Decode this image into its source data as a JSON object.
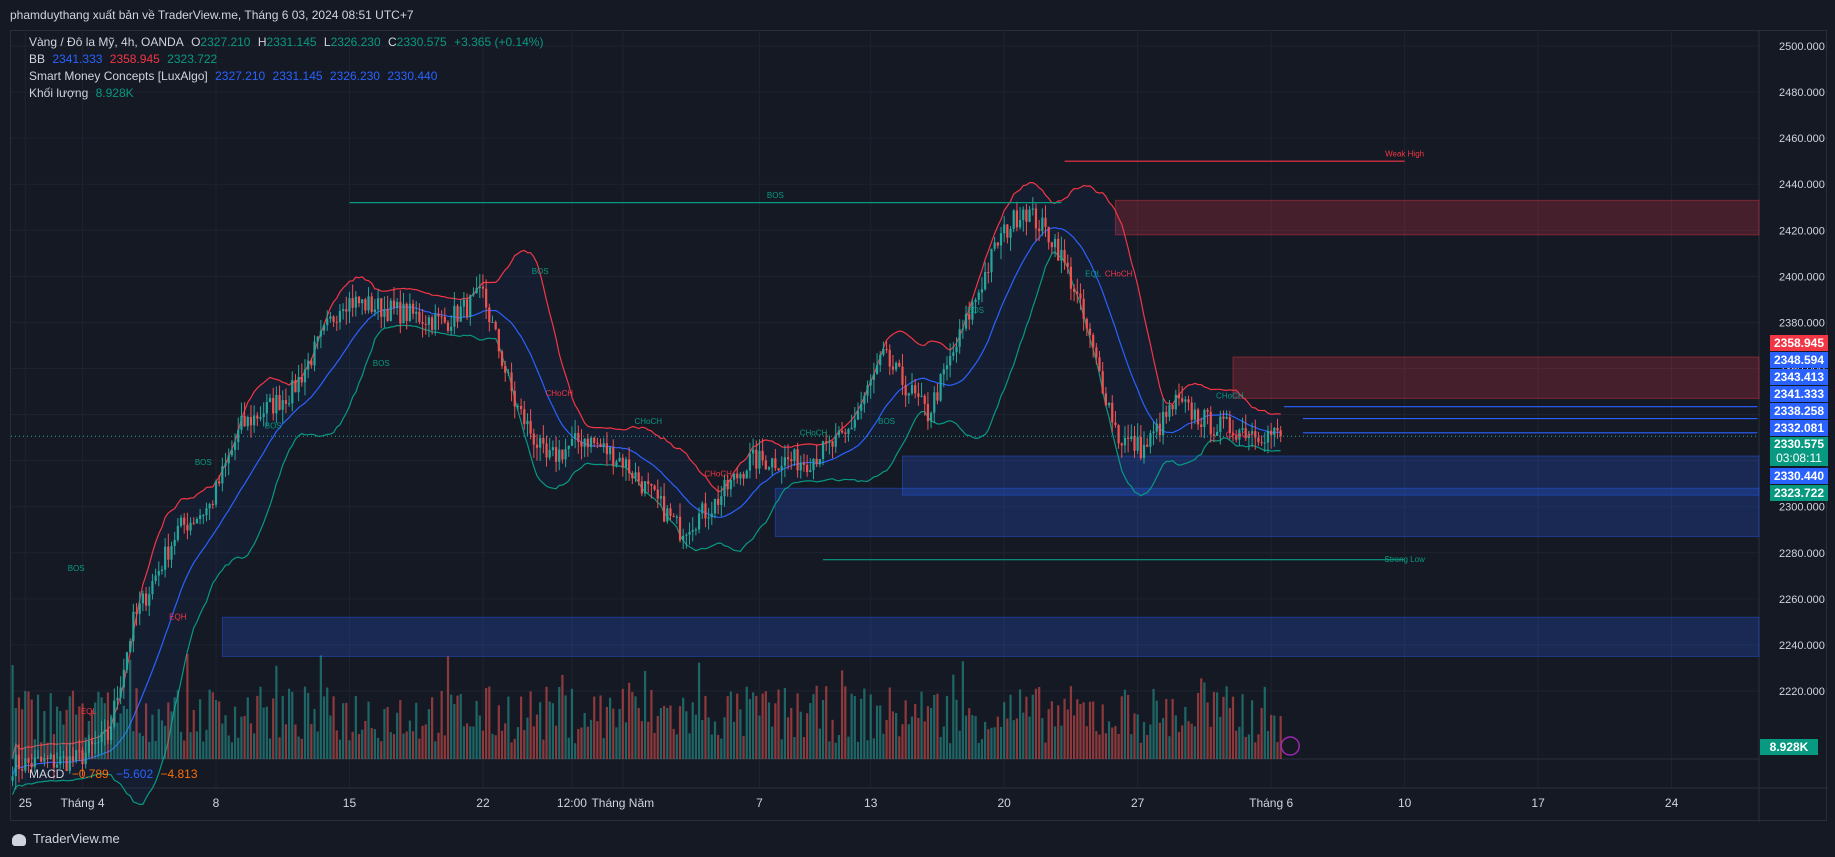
{
  "header": {
    "publisher": "phamduythang xuất bản về TraderView.me, Tháng 6 03, 2024 08:51 UTC+7"
  },
  "legend": {
    "symbol": "Vàng / Đô la Mỹ, 4h, OANDA",
    "o_label": "O",
    "o": "2327.210",
    "h_label": "H",
    "h": "2331.145",
    "l_label": "L",
    "l": "2326.230",
    "c_label": "C",
    "c": "2330.575",
    "change": "+3.365 (+0.14%)",
    "bb_label": "BB",
    "bb_basis": "2341.333",
    "bb_upper": "2358.945",
    "bb_lower": "2323.722",
    "smc_label": "Smart Money Concepts [LuxAlgo]",
    "smc_values": [
      "2327.210",
      "2331.145",
      "2326.230",
      "2330.440"
    ],
    "vol_label": "Khối lượng",
    "vol_value": "8.928K",
    "macd_label": "MACD",
    "macd_values": [
      "−0.789",
      "−5.602",
      "−4.813"
    ]
  },
  "footer": {
    "brand": "TraderView.me"
  },
  "colors": {
    "bg": "#151924",
    "grid": "#1f2330",
    "up": "#26a69a",
    "down": "#ef5350",
    "bb_upper": "#f23645",
    "bb_lower": "#089981",
    "bb_basis": "#2962ff",
    "ob_bull": "#2962ff",
    "ob_bear": "#f23645",
    "text": "#d1d4dc"
  },
  "price_tags": [
    {
      "text": "2358.945",
      "color": "#f23645"
    },
    {
      "text": "2348.594",
      "color": "#2962ff"
    },
    {
      "text": "2343.413",
      "color": "#2962ff"
    },
    {
      "text": "2341.333",
      "color": "#2962ff"
    },
    {
      "text": "2338.258",
      "color": "#2962ff"
    },
    {
      "text": "2332.081",
      "color": "#2962ff"
    },
    {
      "text": "2330.575",
      "countdown": "03:08:11",
      "color": "#089981"
    },
    {
      "text": "2330.440",
      "color": "#2962ff"
    },
    {
      "text": "2323.722",
      "color": "#089981"
    }
  ],
  "volume_tag": {
    "text": "8.928K",
    "color": "#089981"
  },
  "chart_data": {
    "type": "candlestick",
    "timeframe": "4h",
    "ylim": [
      2200,
      2510
    ],
    "y_ticks": [
      2220,
      2240,
      2260,
      2280,
      2300,
      2320,
      2340,
      2360,
      2380,
      2400,
      2420,
      2440,
      2460,
      2480,
      2500
    ],
    "y_tick_labels": [
      "2220.000",
      "2240.000",
      "2260.000",
      "2280.000",
      "2300.000",
      "2320.000",
      "2340.000",
      "2360.000",
      "2380.000",
      "2400.000",
      "2420.000",
      "2440.000",
      "2460.000",
      "2480.000",
      "2500.000"
    ],
    "x_labels": [
      {
        "label": "25",
        "bar": 4
      },
      {
        "label": "Tháng 4",
        "bar": 22
      },
      {
        "label": "8",
        "bar": 64
      },
      {
        "label": "15",
        "bar": 106
      },
      {
        "label": "22",
        "bar": 148
      },
      {
        "label": "12:00",
        "bar": 176
      },
      {
        "label": "Tháng Năm",
        "bar": 192
      },
      {
        "label": "7",
        "bar": 235
      },
      {
        "label": "13",
        "bar": 270
      },
      {
        "label": "20",
        "bar": 312
      },
      {
        "label": "27",
        "bar": 354
      },
      {
        "label": "Tháng 6",
        "bar": 396
      },
      {
        "label": "10",
        "bar": 438
      },
      {
        "label": "17",
        "bar": 480
      },
      {
        "label": "24",
        "bar": 522
      }
    ],
    "total_slots": 550,
    "bar_count": 400,
    "anchors": [
      [
        0,
        2188
      ],
      [
        20,
        2190
      ],
      [
        30,
        2200
      ],
      [
        38,
        2250
      ],
      [
        52,
        2290
      ],
      [
        62,
        2300
      ],
      [
        72,
        2335
      ],
      [
        88,
        2350
      ],
      [
        104,
        2390
      ],
      [
        120,
        2385
      ],
      [
        136,
        2380
      ],
      [
        148,
        2392
      ],
      [
        158,
        2345
      ],
      [
        168,
        2320
      ],
      [
        180,
        2330
      ],
      [
        192,
        2320
      ],
      [
        210,
        2290
      ],
      [
        220,
        2300
      ],
      [
        232,
        2320
      ],
      [
        250,
        2320
      ],
      [
        262,
        2330
      ],
      [
        274,
        2365
      ],
      [
        288,
        2340
      ],
      [
        300,
        2380
      ],
      [
        310,
        2415
      ],
      [
        318,
        2430
      ],
      [
        328,
        2415
      ],
      [
        334,
        2395
      ],
      [
        348,
        2330
      ],
      [
        356,
        2325
      ],
      [
        366,
        2345
      ],
      [
        378,
        2335
      ],
      [
        390,
        2333
      ],
      [
        399,
        2330.575
      ]
    ],
    "current_price": 2330.575,
    "bollinger": {
      "basis": 2341.333,
      "upper": 2358.945,
      "lower": 2323.722
    },
    "annotations": [
      {
        "text": "BOS",
        "bar": 240,
        "price": 2434,
        "color": "#089981"
      },
      {
        "text": "Weak High",
        "bar": 438,
        "price": 2452,
        "color": "#f23645"
      },
      {
        "text": "Strong Low",
        "bar": 438,
        "price": 2276,
        "color": "#089981"
      },
      {
        "text": "BOS",
        "bar": 60,
        "price": 2318,
        "color": "#089981"
      },
      {
        "text": "BOS",
        "bar": 82,
        "price": 2334,
        "color": "#089981"
      },
      {
        "text": "BOS",
        "bar": 116,
        "price": 2361,
        "color": "#089981"
      },
      {
        "text": "BOS",
        "bar": 166,
        "price": 2401,
        "color": "#089981"
      },
      {
        "text": "CHoCH",
        "bar": 172,
        "price": 2348,
        "color": "#f23645"
      },
      {
        "text": "CHoCH",
        "bar": 200,
        "price": 2336,
        "color": "#089981"
      },
      {
        "text": "CHoCH",
        "bar": 222,
        "price": 2313,
        "color": "#f23645"
      },
      {
        "text": "CHoCH",
        "bar": 252,
        "price": 2331,
        "color": "#089981"
      },
      {
        "text": "BOS",
        "bar": 275,
        "price": 2336,
        "color": "#089981"
      },
      {
        "text": "BOS",
        "bar": 303,
        "price": 2384,
        "color": "#089981"
      },
      {
        "text": "EQL",
        "bar": 340,
        "price": 2400,
        "color": "#089981"
      },
      {
        "text": "CHoCH",
        "bar": 348,
        "price": 2400,
        "color": "#f23645"
      },
      {
        "text": "CHoCH",
        "bar": 383,
        "price": 2347,
        "color": "#089981"
      },
      {
        "text": "CHoCH",
        "bar": 386,
        "price": 2330,
        "color": "#f23645"
      },
      {
        "text": "BOS",
        "bar": 20,
        "price": 2272,
        "color": "#089981"
      },
      {
        "text": "EQL",
        "bar": 24,
        "price": 2210,
        "color": "#f23645"
      },
      {
        "text": "EQH",
        "bar": 52,
        "price": 2251,
        "color": "#f23645"
      }
    ],
    "zones": [
      {
        "type": "supply",
        "bar_from": 347,
        "price_top": 2433,
        "price_bottom": 2418
      },
      {
        "type": "supply",
        "bar_from": 384,
        "price_top": 2365,
        "price_bottom": 2347
      },
      {
        "type": "demand",
        "bar_from": 280,
        "price_top": 2322,
        "price_bottom": 2305
      },
      {
        "type": "demand",
        "bar_from": 240,
        "price_top": 2308,
        "price_bottom": 2287
      },
      {
        "type": "demand",
        "bar_from": 66,
        "price_top": 2252,
        "price_bottom": 2235
      }
    ],
    "levels": [
      {
        "bar_from": 331,
        "bar_to": 438,
        "price": 2450,
        "color": "#f23645"
      },
      {
        "bar_from": 106,
        "bar_to": 330,
        "price": 2432,
        "color": "#089981"
      },
      {
        "bar_from": 255,
        "bar_to": 438,
        "price": 2277,
        "color": "#089981"
      },
      {
        "bar_from": 406,
        "bar_to": 550,
        "price": 2338.258,
        "color": "#2962ff"
      },
      {
        "bar_from": 406,
        "bar_to": 550,
        "price": 2332.081,
        "color": "#2962ff"
      },
      {
        "bar_from": 400,
        "bar_to": 550,
        "price": 2343.413,
        "color": "#2962ff"
      }
    ]
  }
}
